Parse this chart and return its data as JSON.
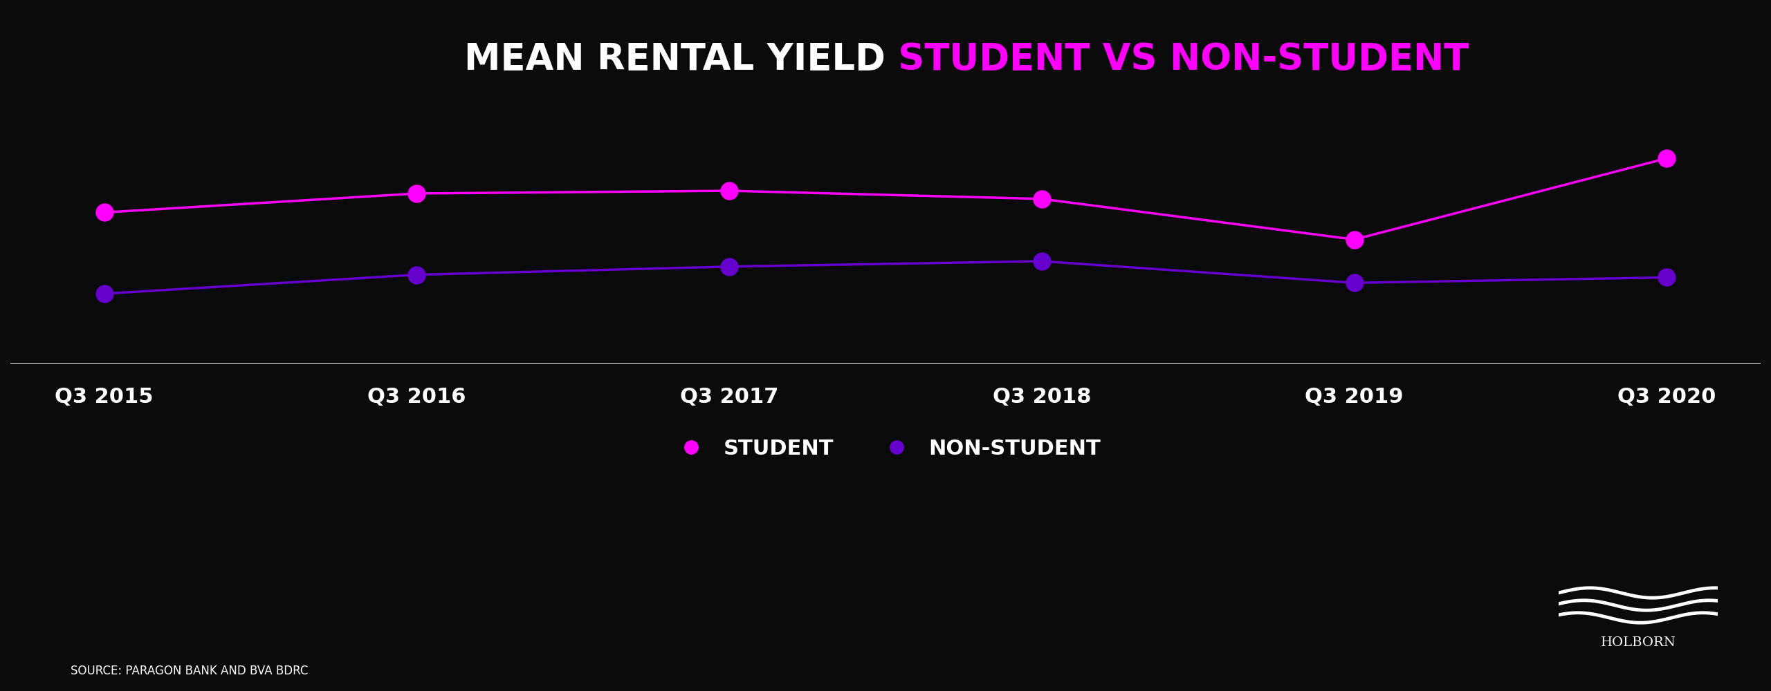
{
  "title_black": "MEAN RENTAL YIELD",
  "title_pink": " STUDENT VS NON-STUDENT",
  "background_color": "#0a0a0a",
  "categories": [
    "Q3 2015",
    "Q3 2016",
    "Q3 2017",
    "Q3 2018",
    "Q3 2019",
    "Q3 2020"
  ],
  "student_values": [
    5.8,
    6.15,
    6.2,
    6.05,
    5.3,
    6.8
  ],
  "non_student_values": [
    4.3,
    4.65,
    4.8,
    4.9,
    4.5,
    4.6
  ],
  "student_color": "#ff00ff",
  "non_student_color": "#6600cc",
  "line_width": 2.5,
  "marker_size": 18,
  "axis_line_color": "#ffffff",
  "tick_label_color": "#ffffff",
  "tick_label_fontsize": 22,
  "title_fontsize_black": 38,
  "title_fontsize_pink": 38,
  "legend_fontsize": 22,
  "source_text": "SOURCE: PARAGON BANK AND BVA BDRC",
  "source_fontsize": 12,
  "holborn_text": "HOLBORN",
  "holborn_fontsize": 20,
  "ylim": [
    3.0,
    8.0
  ]
}
